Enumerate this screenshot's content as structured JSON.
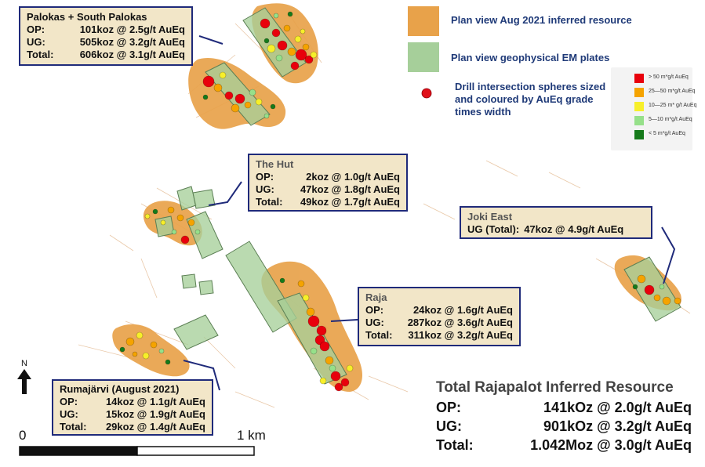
{
  "legend": {
    "resource_label": "Plan view Aug 2021 inferred resource",
    "em_label": "Plan view geophysical EM plates",
    "drill_label": "Drill intersection spheres sized and coloured by AuEq grade times width",
    "resource_color": "#e8a24a",
    "em_color": "#a6cf9a",
    "drill_color": "#e0101a",
    "grades": [
      {
        "label": "> 50  m*g/t  AuEq",
        "color": "#e8000c"
      },
      {
        "label": "25—50 m*g/t AuEq",
        "color": "#f5a300"
      },
      {
        "label": "10—25 m* g/t AuEq",
        "color": "#f7ef2a"
      },
      {
        "label": "5—10 m*g/t AuEq",
        "color": "#96e08a"
      },
      {
        "label": "< 5 m*g/t AuEq",
        "color": "#157a1a"
      }
    ]
  },
  "deposits": {
    "palokas": {
      "title": "Palokas + South Palokas",
      "rows": [
        {
          "label": "OP:",
          "value": "101koz @ 2.5g/t AuEq"
        },
        {
          "label": "UG:",
          "value": "505koz @ 3.2g/t AuEq"
        },
        {
          "label": "Total:",
          "value": "606koz @ 3.1g/t AuEq"
        }
      ]
    },
    "hut": {
      "title": "The Hut",
      "rows": [
        {
          "label": "OP:",
          "value": "2koz @ 1.0g/t AuEq"
        },
        {
          "label": "UG:",
          "value": "47koz @ 1.8g/t AuEq"
        },
        {
          "label": "Total:",
          "value": "49koz @ 1.7g/t AuEq"
        }
      ]
    },
    "joki": {
      "title": "Joki East",
      "rows": [
        {
          "label": "UG (Total):",
          "value": "47koz @ 4.9g/t AuEq"
        }
      ]
    },
    "raja": {
      "title": "Raja",
      "rows": [
        {
          "label": "OP:",
          "value": "24koz @ 1.6g/t AuEq"
        },
        {
          "label": "UG:",
          "value": "287koz @ 3.6g/t AuEq"
        },
        {
          "label": "Total:",
          "value": "311koz @ 3.2g/t AuEq"
        }
      ]
    },
    "ruma": {
      "title": "Rumajärvi (August 2021)",
      "rows": [
        {
          "label": "OP:",
          "value": "14koz @ 1.1g/t AuEq"
        },
        {
          "label": "UG:",
          "value": "15koz @ 1.9g/t AuEq"
        },
        {
          "label": "Total:",
          "value": "29koz @ 1.4g/t AuEq"
        }
      ]
    }
  },
  "total": {
    "title": "Total Rajapalot Inferred Resource",
    "rows": [
      {
        "label": "OP:",
        "value": "141kOz @ 2.0g/t AuEq"
      },
      {
        "label": "UG:",
        "value": "901kOz @ 3.2g/t AuEq"
      },
      {
        "label": "Total:",
        "value": "1.042Moz @ 3.0g/t AuEq"
      }
    ]
  },
  "scale": {
    "start_label": "0",
    "end_label": "1 km"
  },
  "north_label": "N"
}
